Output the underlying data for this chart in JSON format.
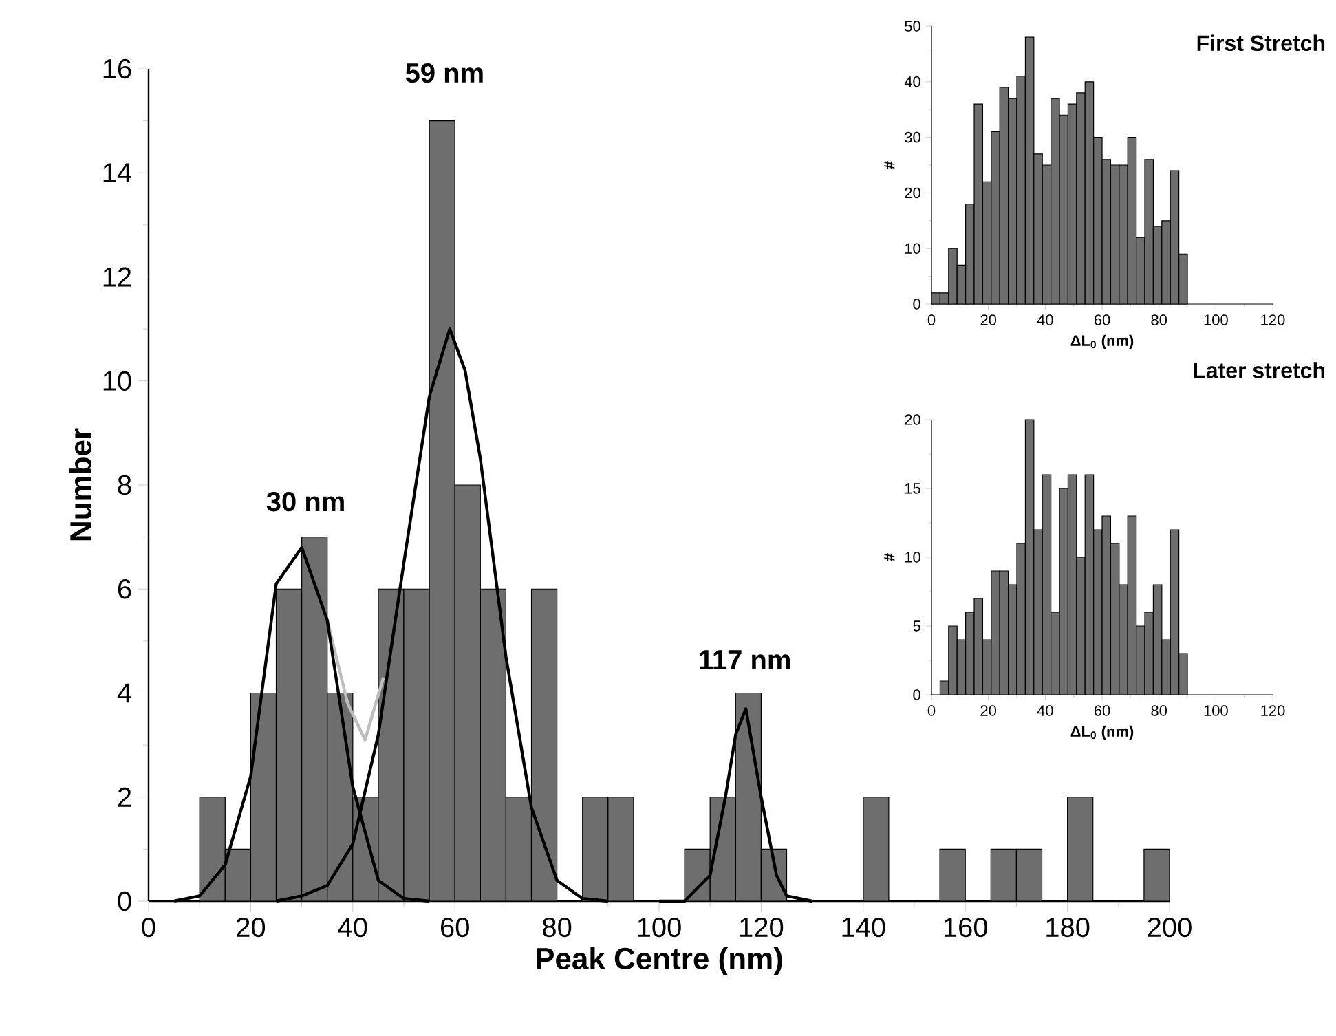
{
  "chart_data": [
    {
      "type": "histogram",
      "xlabel": "Peak Centre (nm)",
      "ylabel": "Number",
      "color": "#6e6e6e",
      "bins": [
        10,
        15,
        20,
        25,
        30,
        35,
        40,
        45,
        50,
        55,
        60,
        65,
        70,
        75,
        80,
        85,
        90,
        95,
        100,
        105,
        110,
        115,
        120,
        125,
        130,
        135,
        140,
        145,
        150,
        155,
        160,
        165,
        170,
        175,
        180,
        185,
        190,
        195,
        200
      ],
      "values": [
        2,
        1,
        4,
        6,
        7,
        4,
        2,
        6,
        6,
        15,
        8,
        6,
        2,
        6,
        0,
        2,
        2,
        0,
        0,
        1,
        2,
        4,
        1,
        0,
        0,
        0,
        2,
        0,
        0,
        1,
        0,
        1,
        1,
        0,
        2,
        0,
        0,
        1
      ],
      "series": [
        {
          "type": "line",
          "color": "#bebebe",
          "x": [
            35,
            39,
            42.4,
            46
          ],
          "values": [
            5.4,
            3.8,
            3.1,
            4.3
          ]
        },
        {
          "type": "line",
          "color": "#000000",
          "x": [
            5,
            10,
            15,
            20,
            25,
            30,
            35,
            40,
            45,
            50,
            55
          ],
          "values": [
            0,
            0.1,
            0.7,
            2.4,
            6.1,
            6.8,
            5.4,
            2.2,
            0.4,
            0.05,
            0
          ]
        },
        {
          "type": "line",
          "color": "#000000",
          "x": [
            25,
            30,
            35,
            40,
            45,
            50,
            55,
            59,
            62,
            65,
            70,
            75,
            80,
            85,
            90
          ],
          "values": [
            0,
            0.1,
            0.3,
            1.1,
            3.2,
            6.5,
            9.7,
            11,
            10.2,
            8.5,
            4.7,
            1.8,
            0.4,
            0.05,
            0
          ]
        },
        {
          "type": "line",
          "color": "#000000",
          "x": [
            100,
            105,
            110,
            113,
            115,
            117,
            120,
            123,
            125,
            130
          ],
          "values": [
            0,
            0,
            0.5,
            2,
            3.2,
            3.7,
            2,
            0.5,
            0.1,
            0
          ]
        }
      ],
      "annotations": [
        "30 nm",
        "59 nm",
        "117 nm"
      ],
      "xlim": [
        0,
        200
      ],
      "xticks": [
        0,
        20,
        40,
        60,
        80,
        100,
        120,
        140,
        160,
        180,
        200
      ],
      "ylim": [
        0,
        16
      ],
      "yticks": [
        0,
        2,
        4,
        6,
        8,
        10,
        12,
        14,
        16
      ]
    },
    {
      "type": "histogram",
      "title": "First Stretch",
      "xlabel": "ΔL$_{0}$ (nm)",
      "ylabel": "#",
      "color": "#6e6e6e",
      "bins": [
        0,
        3,
        6,
        9,
        12,
        15,
        18,
        21,
        24,
        27,
        30,
        33,
        36,
        39,
        42,
        45,
        48,
        51,
        54,
        57,
        60,
        63,
        66,
        69,
        72,
        75,
        78,
        81,
        84,
        87,
        90
      ],
      "values": [
        2,
        2,
        10,
        7,
        18,
        36,
        22,
        31,
        39,
        37,
        41,
        48,
        27,
        25,
        37,
        34,
        36,
        38,
        40,
        30,
        26,
        25,
        25,
        30,
        12,
        26,
        14,
        15,
        24,
        9
      ],
      "xlim": [
        0,
        120
      ],
      "xticks": [
        0,
        20,
        40,
        60,
        80,
        100,
        120
      ],
      "ylim": [
        0,
        50
      ],
      "yticks": [
        0,
        10,
        20,
        30,
        40,
        50
      ]
    },
    {
      "type": "histogram",
      "title": "Later stretch",
      "xlabel": "ΔL$_{0}$ (nm)",
      "ylabel": "#",
      "color": "#6e6e6e",
      "bins": [
        3,
        6,
        9,
        12,
        15,
        18,
        21,
        24,
        27,
        30,
        33,
        36,
        39,
        42,
        45,
        48,
        51,
        54,
        57,
        60,
        63,
        66,
        69,
        72,
        75,
        78,
        81,
        84,
        87,
        90
      ],
      "values": [
        1,
        5,
        4,
        6,
        7,
        4,
        9,
        9,
        8,
        11,
        20,
        12,
        16,
        6,
        15,
        16,
        10,
        16,
        12,
        13,
        11,
        8,
        13,
        5,
        6,
        8,
        4,
        12,
        3
      ],
      "xlim": [
        0,
        120
      ],
      "xticks": [
        0,
        20,
        40,
        60,
        80,
        100,
        120
      ],
      "ylim": [
        0,
        20
      ],
      "yticks": [
        0,
        5,
        10,
        15,
        20
      ]
    }
  ]
}
